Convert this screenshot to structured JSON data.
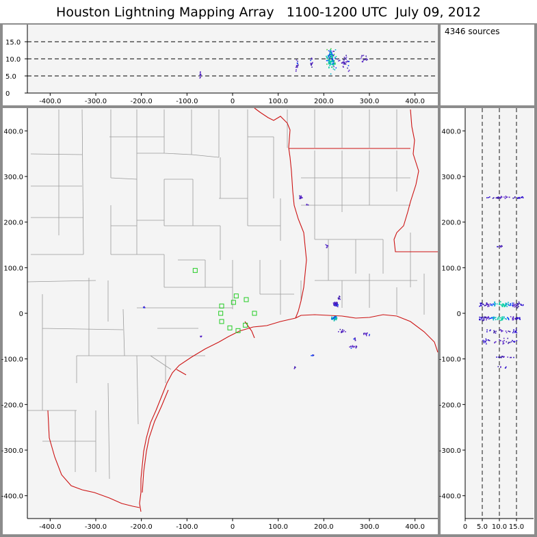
{
  "title": "Houston Lightning Mapping Array   1100-1200 UTC  July 09, 2012",
  "source_count": "4346 sources",
  "chart_data": [
    {
      "type": "scatter",
      "panel": "altitude vs east-west",
      "xlim": [
        -450,
        450
      ],
      "ylim": [
        0,
        20
      ],
      "xticks": [
        "-400.0",
        "-300.0",
        "-200.0",
        "-100.0",
        "0",
        "100.0",
        "200.0",
        "300.0",
        "400.0"
      ],
      "yticks": [
        "0",
        "5.0",
        "10.0",
        "15.0"
      ],
      "grid": "dashed horizontal lines at 5, 10, 15",
      "clusters": [
        {
          "x": -72,
          "y": 5.5,
          "spread_x": 3,
          "spread_y": 1.5,
          "n": 12
        },
        {
          "x": 140,
          "y": 8,
          "spread_x": 6,
          "spread_y": 2.5,
          "n": 14
        },
        {
          "x": 172,
          "y": 9.5,
          "spread_x": 4,
          "spread_y": 3,
          "n": 12
        },
        {
          "x": 215,
          "y": 10,
          "spread_x": 14,
          "spread_y": 4.5,
          "n": 120
        },
        {
          "x": 245,
          "y": 9,
          "spread_x": 20,
          "spread_y": 3,
          "n": 35
        },
        {
          "x": 285,
          "y": 10,
          "spread_x": 15,
          "spread_y": 3,
          "n": 15
        }
      ]
    },
    {
      "type": "scatter",
      "panel": "plan view (north-south vs east-west)",
      "xlim": [
        -450,
        450
      ],
      "ylim": [
        -450,
        450
      ],
      "xticks": [
        "-400.0",
        "-300.0",
        "-200.0",
        "-100.0",
        "0",
        "100.0",
        "200.0",
        "300.0",
        "400.0"
      ],
      "yticks": [
        "400.0",
        "300.0",
        "200.0",
        "100.0",
        "0",
        "-100.0",
        "-200.0",
        "-300.0",
        "-400.0"
      ],
      "station_markers": [
        {
          "x": -82,
          "y": 94
        },
        {
          "x": -24,
          "y": 16
        },
        {
          "x": 2,
          "y": 24
        },
        {
          "x": 8,
          "y": 38
        },
        {
          "x": 30,
          "y": 30
        },
        {
          "x": 48,
          "y": 0
        },
        {
          "x": -26,
          "y": 0
        },
        {
          "x": -24,
          "y": -18
        },
        {
          "x": -6,
          "y": -32
        },
        {
          "x": 12,
          "y": -38
        },
        {
          "x": 28,
          "y": -26
        }
      ],
      "clusters": [
        {
          "x": 148,
          "y": 255,
          "spread_x": 5,
          "spread_y": 5,
          "n": 14
        },
        {
          "x": 162,
          "y": 240,
          "spread_x": 3,
          "spread_y": 3,
          "n": 4
        },
        {
          "x": 205,
          "y": 148,
          "spread_x": 4,
          "spread_y": 5,
          "n": 8
        },
        {
          "x": -195,
          "y": 15,
          "spread_x": 3,
          "spread_y": 3,
          "n": 4
        },
        {
          "x": -70,
          "y": -50,
          "spread_x": 3,
          "spread_y": 3,
          "n": 5
        },
        {
          "x": 225,
          "y": 20,
          "spread_x": 8,
          "spread_y": 8,
          "n": 40
        },
        {
          "x": 222,
          "y": -10,
          "spread_x": 9,
          "spread_y": 6,
          "n": 50
        },
        {
          "x": 232,
          "y": 35,
          "spread_x": 4,
          "spread_y": 6,
          "n": 10
        },
        {
          "x": 238,
          "y": -38,
          "spread_x": 10,
          "spread_y": 6,
          "n": 12
        },
        {
          "x": 268,
          "y": -55,
          "spread_x": 5,
          "spread_y": 5,
          "n": 8
        },
        {
          "x": 262,
          "y": -72,
          "spread_x": 18,
          "spread_y": 4,
          "n": 14
        },
        {
          "x": 290,
          "y": -45,
          "spread_x": 15,
          "spread_y": 6,
          "n": 12
        },
        {
          "x": 175,
          "y": -92,
          "spread_x": 5,
          "spread_y": 3,
          "n": 6
        },
        {
          "x": 135,
          "y": -118,
          "spread_x": 3,
          "spread_y": 4,
          "n": 4
        }
      ]
    },
    {
      "type": "scatter",
      "panel": "north-south vs altitude",
      "xlim": [
        0,
        20
      ],
      "ylim": [
        -450,
        450
      ],
      "xticks": [
        "0",
        "5.0",
        "10.0",
        "15.0"
      ],
      "grid": "dashed vertical lines at 5, 10, 15",
      "bands": [
        {
          "y": 255,
          "x0": 6,
          "x1": 17,
          "spread_y": 4,
          "n": 40
        },
        {
          "y": 148,
          "x0": 9,
          "x1": 11,
          "spread_y": 3,
          "n": 8
        },
        {
          "y": 20,
          "x0": 4,
          "x1": 17,
          "spread_y": 8,
          "n": 110
        },
        {
          "y": -10,
          "x0": 4,
          "x1": 16,
          "spread_y": 7,
          "n": 100
        },
        {
          "y": -38,
          "x0": 6,
          "x1": 15,
          "spread_y": 6,
          "n": 30
        },
        {
          "y": -60,
          "x0": 5,
          "x1": 15,
          "spread_y": 8,
          "n": 35
        },
        {
          "y": -95,
          "x0": 9,
          "x1": 15,
          "spread_y": 3,
          "n": 15
        },
        {
          "y": -118,
          "x0": 9,
          "x1": 12,
          "spread_y": 3,
          "n": 6
        }
      ]
    }
  ]
}
